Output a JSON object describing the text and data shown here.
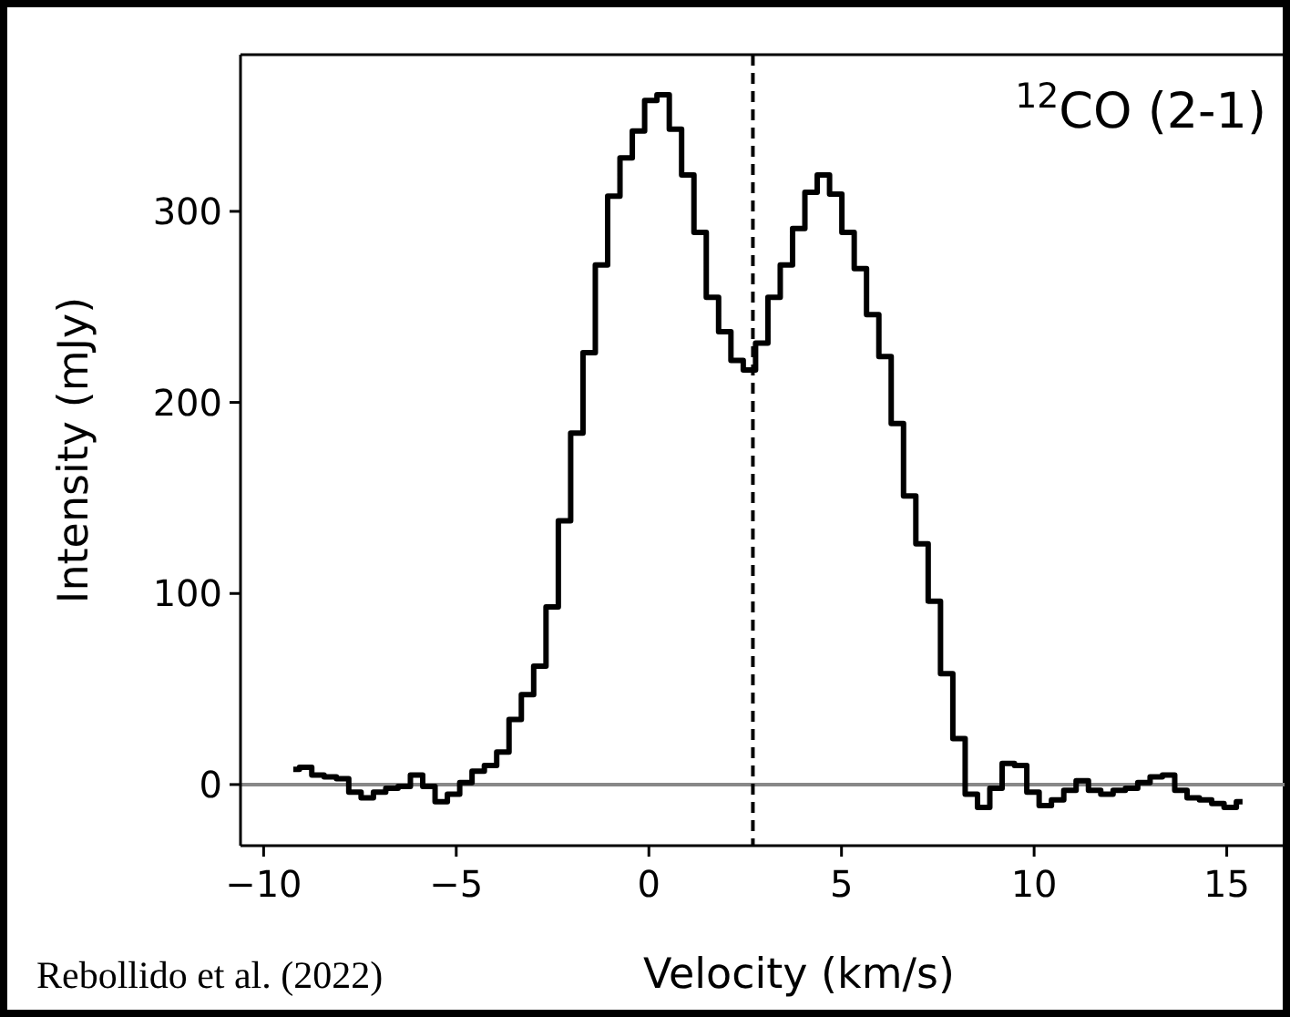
{
  "chart_data": {
    "type": "step",
    "xlabel": "Velocity (km/s)",
    "ylabel": "Intensity (mJy)",
    "annotations": [
      "$^{12}$CO (2-1)",
      "Rebollido et al. (2022)"
    ],
    "x": [
      -9.23,
      -8.91,
      -8.59,
      -8.27,
      -7.95,
      -7.63,
      -7.31,
      -6.99,
      -6.67,
      -6.35,
      -6.03,
      -5.71,
      -5.39,
      -5.07,
      -4.75,
      -4.43,
      -4.11,
      -3.79,
      -3.47,
      -3.15,
      -2.83,
      -2.51,
      -2.19,
      -1.87,
      -1.55,
      -1.23,
      -0.91,
      -0.59,
      -0.27,
      0.05,
      0.37,
      0.69,
      1.01,
      1.33,
      1.65,
      1.97,
      2.29,
      2.61,
      2.93,
      3.25,
      3.57,
      3.89,
      4.21,
      4.53,
      4.85,
      5.17,
      5.49,
      5.81,
      6.13,
      6.45,
      6.77,
      7.09,
      7.41,
      7.73,
      8.05,
      8.37,
      8.69,
      9.01,
      9.33,
      9.65,
      9.97,
      10.29,
      10.61,
      10.93,
      11.25,
      11.57,
      11.89,
      12.21,
      12.53,
      12.85,
      13.17,
      13.49,
      13.81,
      14.13,
      14.45,
      14.77,
      15.09,
      15.41
    ],
    "series": [
      {
        "color": "#000000",
        "values": [
          8,
          9,
          5,
          4,
          3,
          -4,
          -7,
          -4,
          -2,
          -1,
          5,
          -1,
          -9,
          -5,
          1,
          7,
          10,
          17,
          34,
          47,
          62,
          93,
          138,
          184,
          226,
          272,
          308,
          328,
          342,
          358,
          361,
          343,
          319,
          289,
          255,
          237,
          222,
          217,
          231,
          255,
          272,
          291,
          310,
          319,
          309,
          289,
          270,
          246,
          224,
          189,
          151,
          126,
          96,
          58,
          24,
          -5,
          -12,
          -2,
          11,
          10,
          -4,
          -11,
          -8,
          -3,
          2,
          -3,
          -5,
          -3,
          -2,
          1,
          4,
          5,
          -3,
          -7,
          -8,
          -10,
          -12,
          -9
        ]
      }
    ],
    "xlim": [
      -10.6,
      16.5
    ],
    "ylim": [
      -32,
      382
    ],
    "xticks": [
      {
        "value": -10,
        "label": "−10"
      },
      {
        "value": -5,
        "label": "−5"
      },
      0,
      5,
      10,
      15
    ],
    "yticks": [
      0,
      100,
      200,
      300
    ],
    "ref_lines": [
      {
        "axis": "y",
        "value": 0,
        "color": "#888888",
        "line_style": "solid"
      },
      {
        "axis": "x",
        "value": 2.7,
        "color": "#000000",
        "line_style": "dashed"
      }
    ],
    "grid": false
  }
}
